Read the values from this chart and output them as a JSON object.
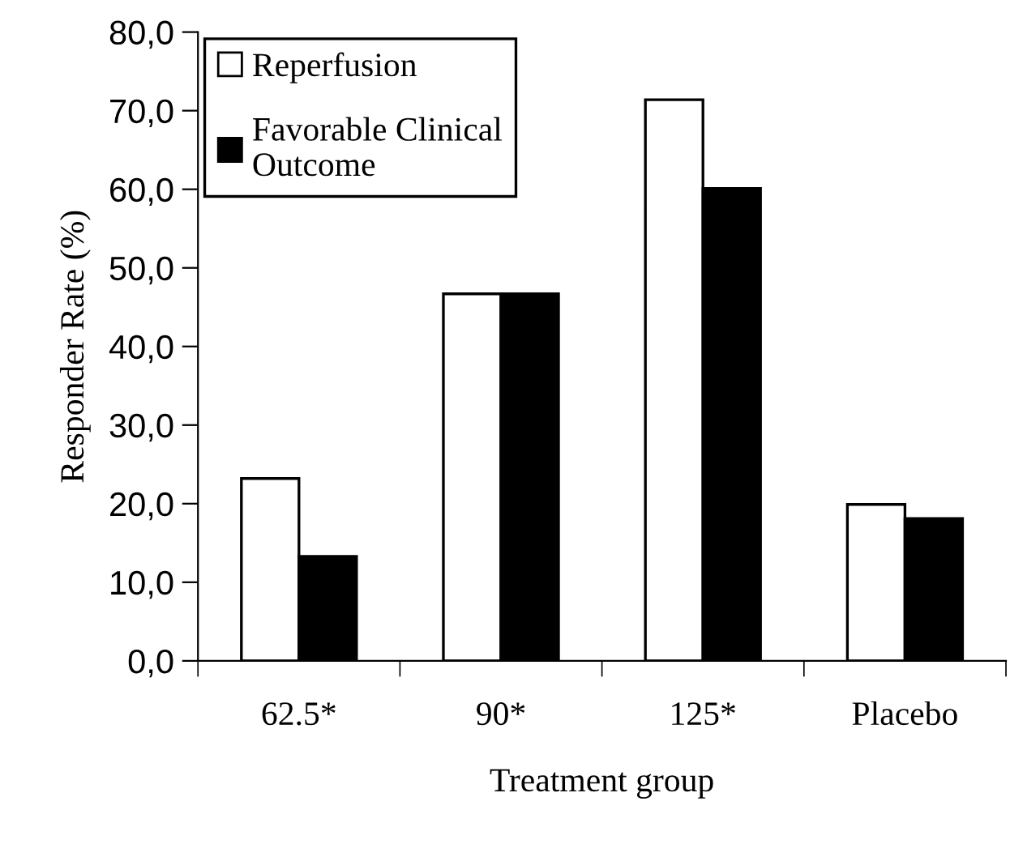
{
  "chart_data": {
    "type": "bar",
    "xlabel": "Treatment group",
    "ylabel": "Responder Rate (%)",
    "categories": [
      "62.5*",
      "90*",
      "125*",
      "Placebo"
    ],
    "series": [
      {
        "name": "Reperfusion",
        "color": "#ffffff",
        "values": [
          23.2,
          46.7,
          71.4,
          19.9
        ]
      },
      {
        "name": "Favorable Clinical Outcome",
        "color": "#000000",
        "values": [
          13.3,
          46.7,
          60.1,
          18.1
        ]
      }
    ],
    "ylim": [
      0,
      80
    ],
    "yticks": [
      {
        "value": 0,
        "label": "0,0"
      },
      {
        "value": 10,
        "label": "10,0"
      },
      {
        "value": 20,
        "label": "20,0"
      },
      {
        "value": 30,
        "label": "30,0"
      },
      {
        "value": 40,
        "label": "40,0"
      },
      {
        "value": 50,
        "label": "50,0"
      },
      {
        "value": 60,
        "label": "60,0"
      },
      {
        "value": 70,
        "label": "70,0"
      },
      {
        "value": 80,
        "label": "80,0"
      }
    ],
    "legend": "top left",
    "grid": false
  }
}
